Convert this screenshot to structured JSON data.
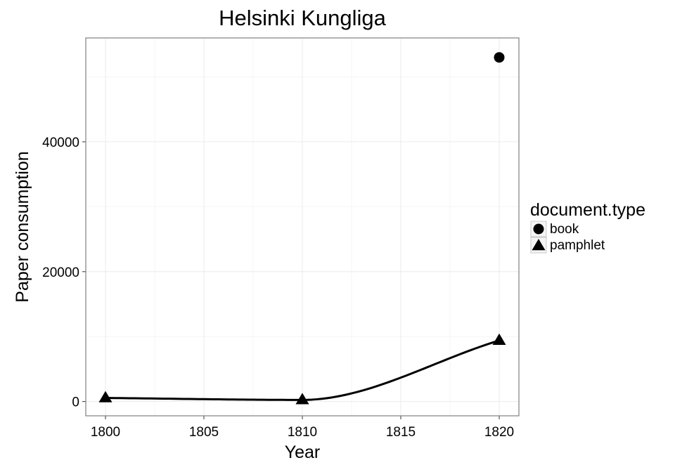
{
  "chart_data": {
    "type": "line",
    "title": "Helsinki Kungliga",
    "xlabel": "Year",
    "ylabel": "Paper consumption",
    "xlim": [
      1799,
      1821
    ],
    "ylim": [
      -2200,
      56000
    ],
    "x_ticks": [
      1800,
      1805,
      1810,
      1815,
      1820
    ],
    "y_ticks": [
      0,
      20000,
      40000
    ],
    "grid": true,
    "legend": {
      "title": "document.type",
      "position": "right",
      "entries": [
        {
          "label": "book",
          "shape": "circle"
        },
        {
          "label": "pamphlet",
          "shape": "triangle"
        }
      ]
    },
    "series": [
      {
        "name": "book",
        "shape": "circle",
        "x": [
          1820
        ],
        "y": [
          53000
        ]
      },
      {
        "name": "pamphlet",
        "shape": "triangle",
        "x": [
          1800,
          1810,
          1820
        ],
        "y": [
          550,
          250,
          9400
        ]
      }
    ],
    "smooth_line": {
      "series": "pamphlet",
      "color": "#000000"
    },
    "colors": {
      "marks": "#000000",
      "panel_border": "#7f7f7f",
      "grid_major": "#ebebeb",
      "grid_minor": "#f5f5f5"
    }
  }
}
